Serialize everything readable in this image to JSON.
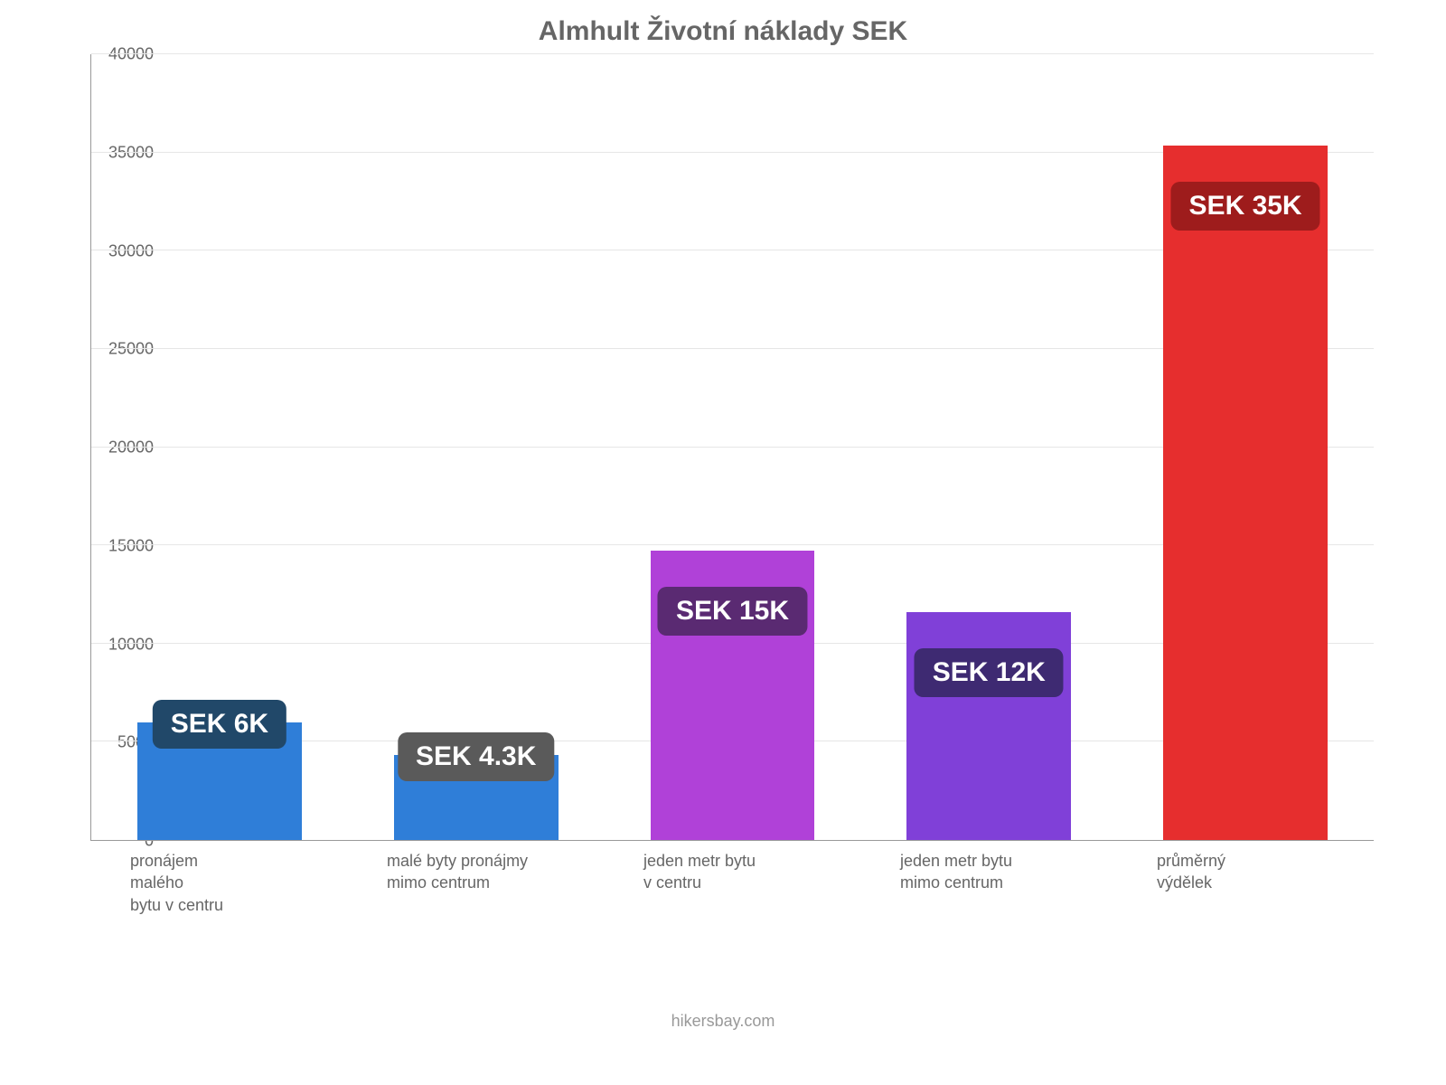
{
  "chart": {
    "type": "bar",
    "title": "Almhult Životní náklady SEK",
    "title_color": "#666666",
    "title_fontsize": 30,
    "background_color": "#ffffff",
    "axis_color": "#999999",
    "grid_color": "#e6e6e6",
    "ylabel_color": "#666666",
    "ylabel_fontsize": 18,
    "xlabel_color": "#666666",
    "xlabel_fontsize": 18,
    "ylim": [
      0,
      40000
    ],
    "ytick_step": 5000,
    "yticks": [
      "0",
      "5000",
      "10000",
      "15000",
      "20000",
      "25000",
      "30000",
      "35000",
      "40000"
    ],
    "bar_width_pct": 64,
    "badge_fontsize": 30,
    "badge_text_color": "#ffffff",
    "badge_radius": 10,
    "bars": [
      {
        "category": "pronájem\nmalého\nbytu v centru",
        "value": 6000,
        "bar_color": "#2f7ed8",
        "badge_text": "SEK 6K",
        "badge_bg": "#214869"
      },
      {
        "category": "malé byty pronájmy\nmimo centrum",
        "value": 4300,
        "bar_color": "#2f7ed8",
        "badge_text": "SEK 4.3K",
        "badge_bg": "#5a5a5a"
      },
      {
        "category": "jeden metr bytu\nv centru",
        "value": 14700,
        "bar_color": "#b041d8",
        "badge_text": "SEK 15K",
        "badge_bg": "#5a2a72"
      },
      {
        "category": "jeden metr bytu\nmimo centrum",
        "value": 11600,
        "bar_color": "#8040d8",
        "badge_text": "SEK 12K",
        "badge_bg": "#3e2a72"
      },
      {
        "category": "průměrný\nvýdělek",
        "value": 35300,
        "bar_color": "#e62e2e",
        "badge_text": "SEK 35K",
        "badge_bg": "#9e1c1c"
      }
    ],
    "attribution": "hikersbay.com",
    "attribution_color": "#999999",
    "attribution_fontsize": 18
  }
}
